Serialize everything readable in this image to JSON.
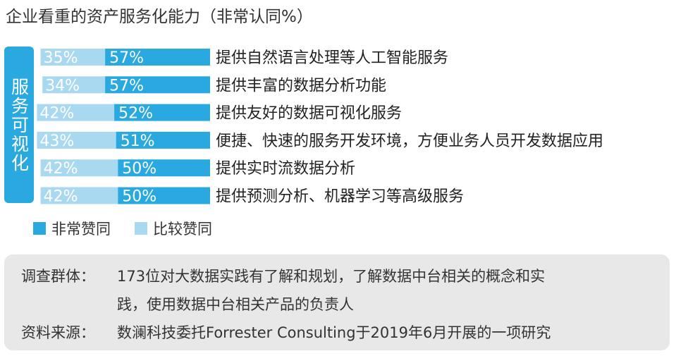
{
  "title": "企业看重的资产服务化能力（非常认同%）",
  "group_label": "服务可视化",
  "colors": {
    "strong": "#29a9df",
    "agree": "#a9d9f0",
    "group_box": "#29a9df",
    "note_bg": "#e8e8e8"
  },
  "chart_data": {
    "type": "bar",
    "stacked": true,
    "orientation": "horizontal",
    "unit": "%",
    "categories": [
      "提供自然语言处理等人工智能服务",
      "提供丰富的数据分析功能",
      "提供友好的数据可视化服务",
      "便捷、快速的服务开发环境，方便业务人员开发数据应用",
      "提供实时流数据分析",
      "提供预测分析、机器学习等高级服务"
    ],
    "series": [
      {
        "name": "比较赞同",
        "values": [
          35,
          34,
          42,
          43,
          42,
          42
        ],
        "labels": [
          "35%",
          "34%",
          "42%",
          "43%",
          "42%",
          "42%"
        ]
      },
      {
        "name": "非常赞同",
        "values": [
          57,
          57,
          52,
          51,
          50,
          50
        ],
        "labels": [
          "57%",
          "57%",
          "52%",
          "51%",
          "50%",
          "50%"
        ]
      }
    ],
    "legend": [
      "非常赞同",
      "比较赞同"
    ],
    "legend_position": "bottom-left"
  },
  "notes": [
    {
      "label": "调查群体：",
      "text": "173位对大数据实践有了解和规划，了解数据中台相关的概念和实"
    },
    {
      "label": "",
      "text": "践，使用数据中台相关产品的负责人"
    },
    {
      "label": "资料来源：",
      "text": "数澜科技委托Forrester Consulting于2019年6月开展的一项研究"
    }
  ]
}
